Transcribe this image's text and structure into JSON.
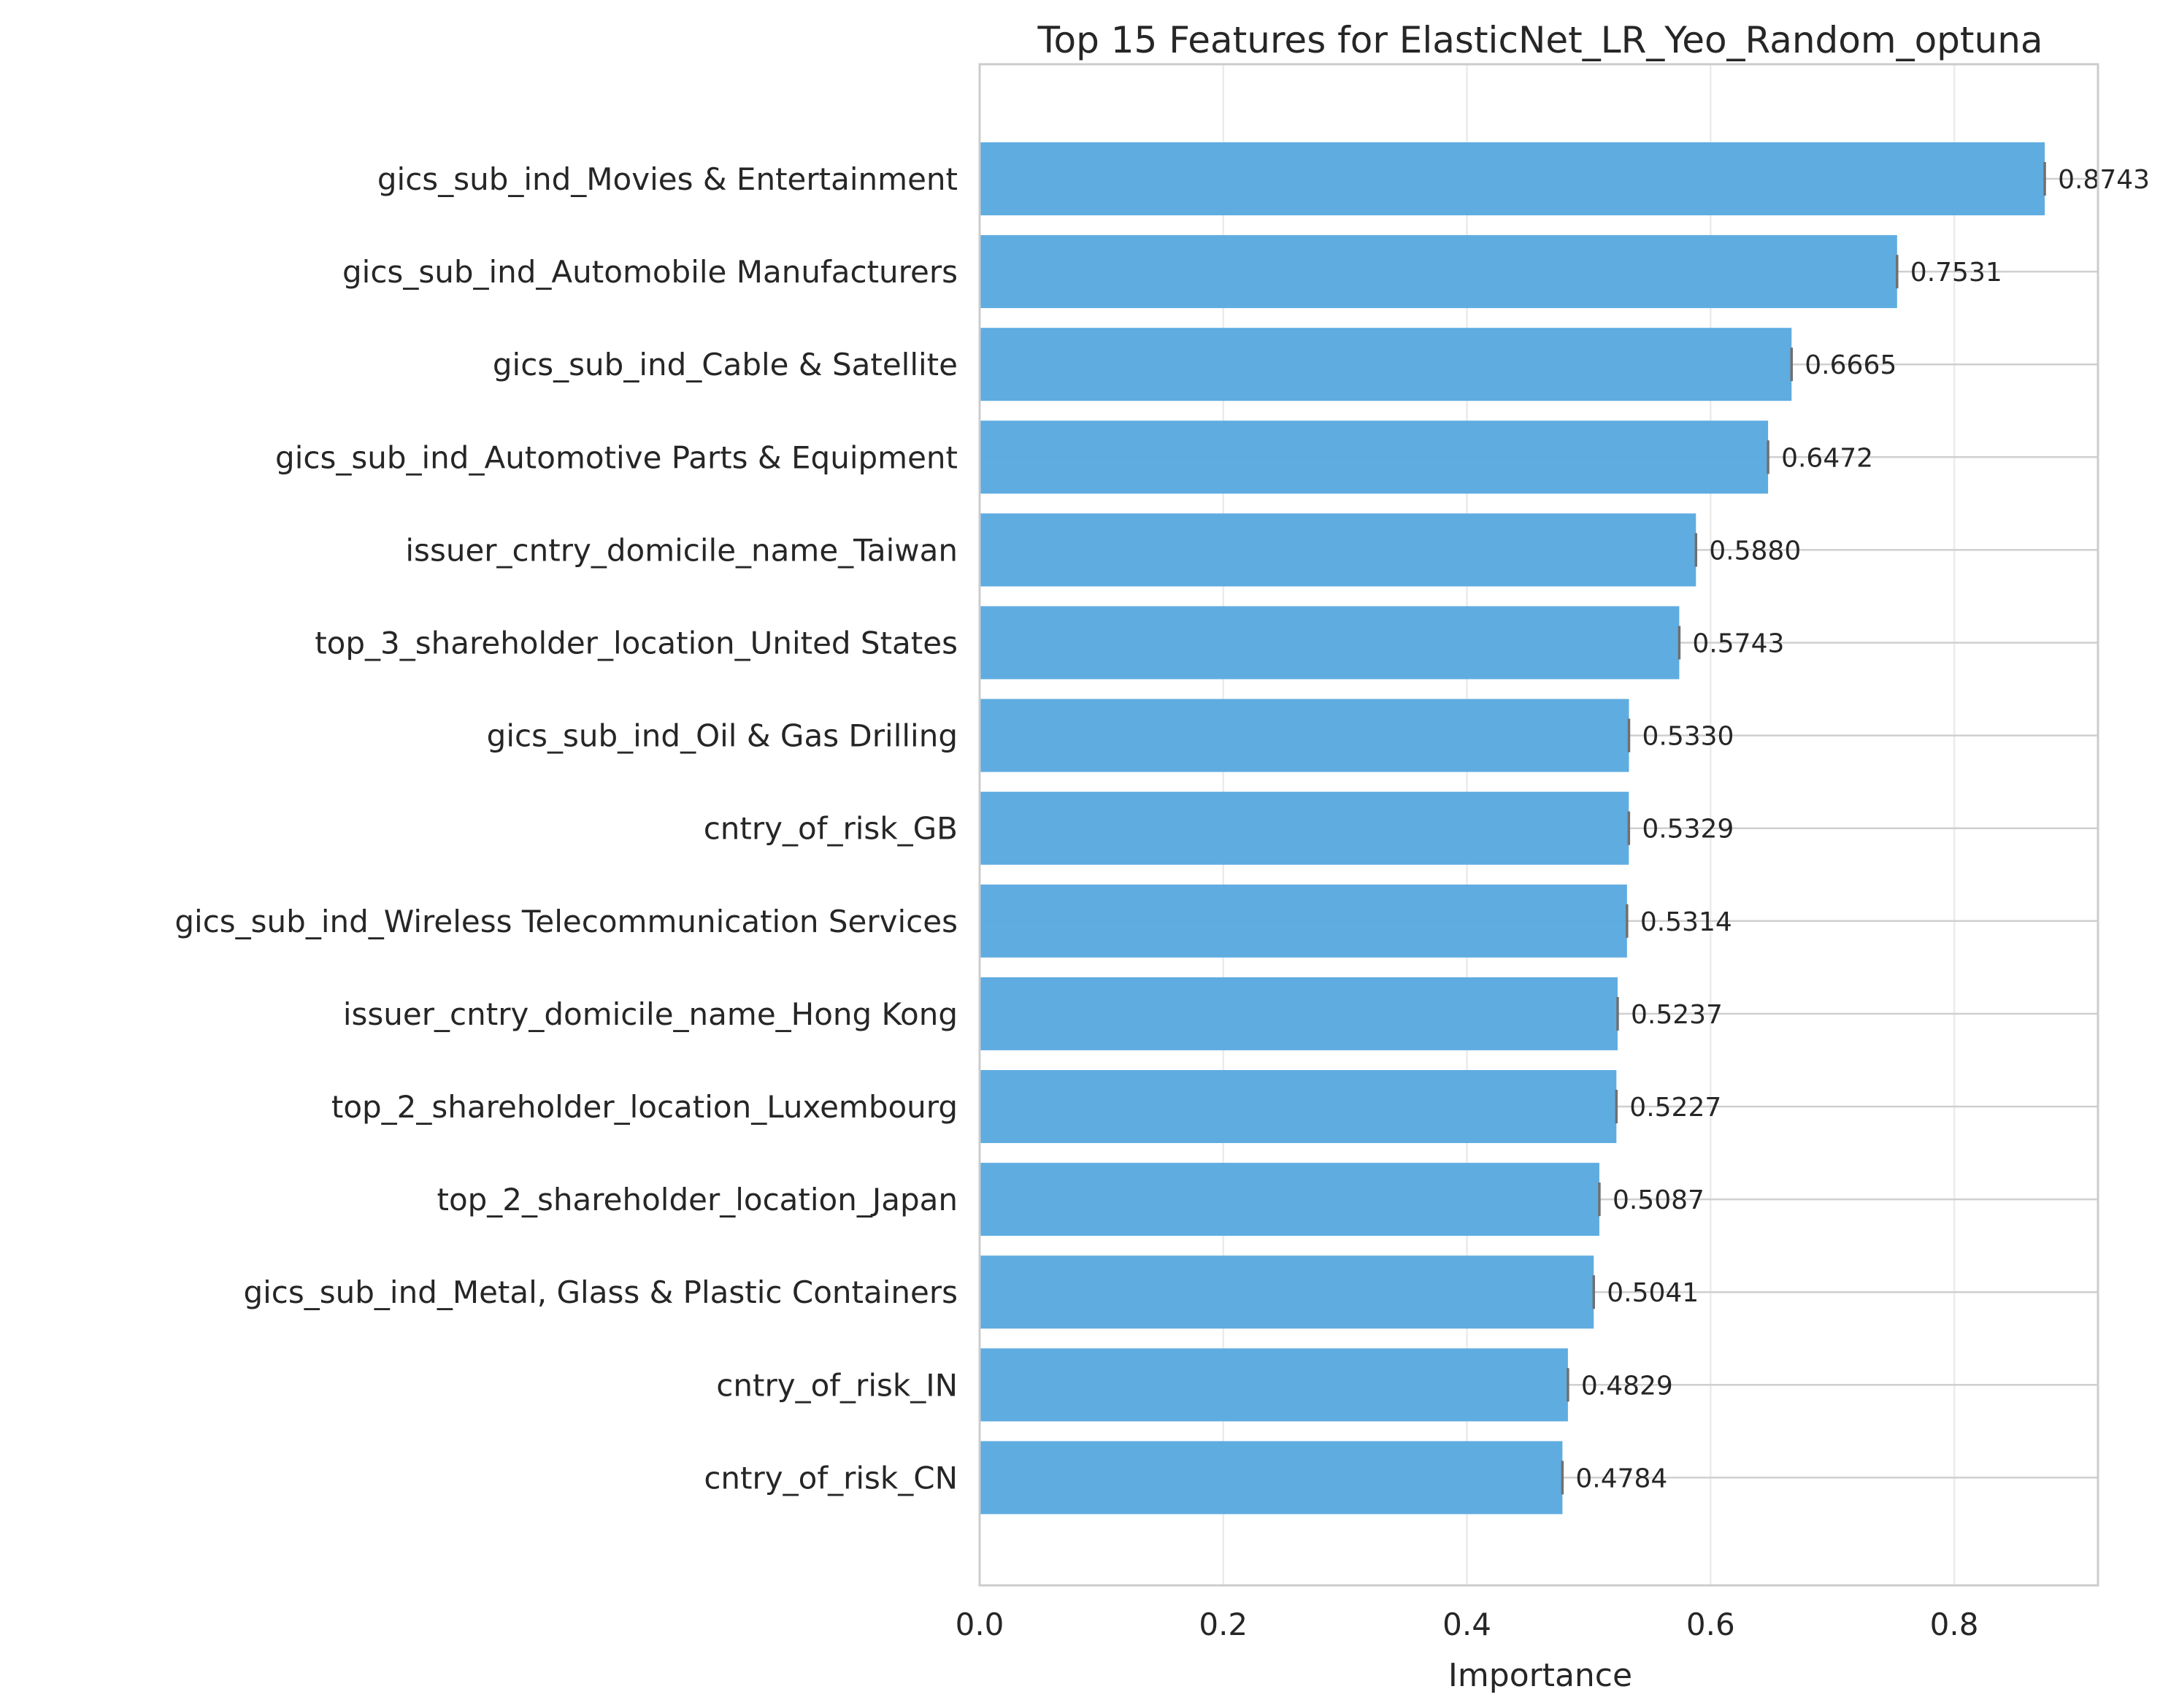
{
  "chart_data": {
    "type": "bar",
    "orientation": "horizontal",
    "title": "Top 15 Features for ElasticNet_LR_Yeo_Random_optuna",
    "xlabel": "Importance",
    "ylabel": "",
    "xlim": [
      0,
      0.918
    ],
    "xticks": [
      "0.0",
      "0.2",
      "0.4",
      "0.6",
      "0.8"
    ],
    "xtick_values": [
      0,
      0.2,
      0.4,
      0.6,
      0.8
    ],
    "grid": true,
    "bar_color": "#5aa9e0",
    "categories": [
      "gics_sub_ind_Movies & Entertainment",
      "gics_sub_ind_Automobile Manufacturers",
      "gics_sub_ind_Cable & Satellite",
      "gics_sub_ind_Automotive Parts & Equipment",
      "issuer_cntry_domicile_name_Taiwan",
      "top_3_shareholder_location_United States",
      "gics_sub_ind_Oil & Gas Drilling",
      "cntry_of_risk_GB",
      "gics_sub_ind_Wireless Telecommunication Services",
      "issuer_cntry_domicile_name_Hong Kong",
      "top_2_shareholder_location_Luxembourg",
      "top_2_shareholder_location_Japan",
      "gics_sub_ind_Metal, Glass & Plastic Containers",
      "cntry_of_risk_IN",
      "cntry_of_risk_CN"
    ],
    "values": [
      0.8743,
      0.7531,
      0.6665,
      0.6472,
      0.588,
      0.5743,
      0.533,
      0.5329,
      0.5314,
      0.5237,
      0.5227,
      0.5087,
      0.5041,
      0.4829,
      0.4784
    ],
    "value_labels": [
      "0.8743",
      "0.7531",
      "0.6665",
      "0.6472",
      "0.5880",
      "0.5743",
      "0.5330",
      "0.5329",
      "0.5314",
      "0.5237",
      "0.5227",
      "0.5087",
      "0.5041",
      "0.4829",
      "0.4784"
    ]
  }
}
